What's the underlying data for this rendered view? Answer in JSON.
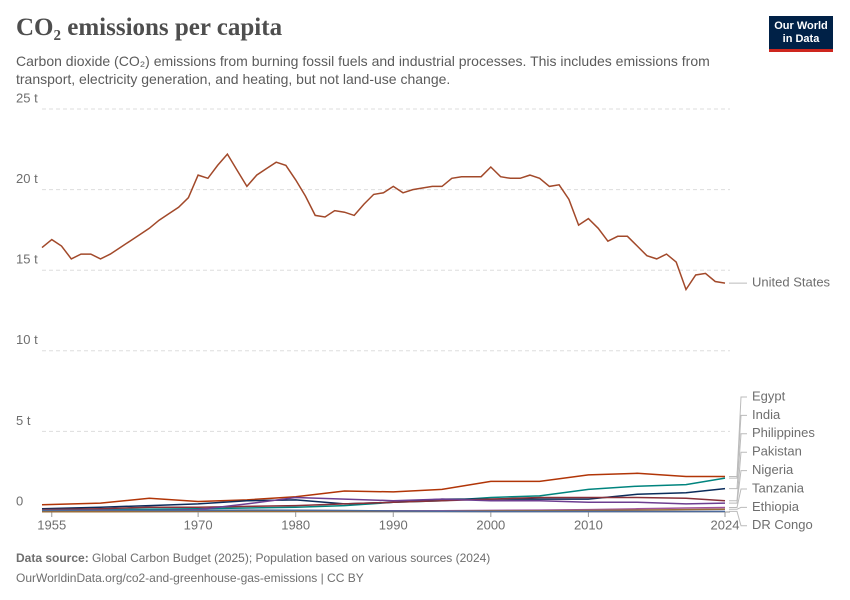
{
  "title": "CO₂ emissions per capita",
  "subtitle": "Carbon dioxide (CO₂) emissions from burning fossil fuels and industrial processes. This includes emissions from transport, electricity generation, and heating, but not land-use change.",
  "logo": [
    "Our World",
    "in Data"
  ],
  "source_label": "Data source:",
  "source": "Global Carbon Budget (2025); Population based on various sources (2024)",
  "footer": "OurWorldinData.org/co2-and-greenhouse-gas-emissions | CC BY",
  "chart_data": {
    "type": "line",
    "xlim": [
      1954,
      2024
    ],
    "xticks": [
      1955,
      1970,
      1980,
      1990,
      2000,
      2010,
      2024
    ],
    "ylim": [
      0,
      25
    ],
    "yticks": [
      0,
      {
        "value": 5,
        "label": "5 t"
      },
      {
        "value": 10,
        "label": "10 t"
      },
      {
        "value": 15,
        "label": "15 t"
      },
      {
        "value": 20,
        "label": "20 t"
      },
      {
        "value": 25,
        "label": "25 t"
      }
    ],
    "grid": true,
    "series": [
      {
        "name": "United States",
        "color": "#a2492a",
        "x": [
          1954,
          1955,
          1956,
          1957,
          1958,
          1959,
          1960,
          1961,
          1962,
          1963,
          1964,
          1965,
          1966,
          1967,
          1968,
          1969,
          1970,
          1971,
          1972,
          1973,
          1974,
          1975,
          1976,
          1977,
          1978,
          1979,
          1980,
          1981,
          1982,
          1983,
          1984,
          1985,
          1986,
          1987,
          1988,
          1989,
          1990,
          1991,
          1992,
          1993,
          1994,
          1995,
          1996,
          1997,
          1998,
          1999,
          2000,
          2001,
          2002,
          2003,
          2004,
          2005,
          2006,
          2007,
          2008,
          2009,
          2010,
          2011,
          2012,
          2013,
          2014,
          2015,
          2016,
          2017,
          2018,
          2019,
          2020,
          2021,
          2022,
          2023,
          2024
        ],
        "values": [
          16.4,
          16.9,
          16.5,
          15.7,
          16.0,
          16.0,
          15.7,
          16.0,
          16.4,
          16.8,
          17.2,
          17.6,
          18.1,
          18.5,
          18.9,
          19.5,
          20.9,
          20.7,
          21.5,
          22.2,
          21.2,
          20.2,
          20.9,
          21.3,
          21.7,
          21.5,
          20.6,
          19.6,
          18.4,
          18.3,
          18.7,
          18.6,
          18.4,
          19.1,
          19.7,
          19.8,
          20.2,
          19.8,
          20.0,
          20.1,
          20.2,
          20.2,
          20.7,
          20.8,
          20.8,
          20.8,
          21.4,
          20.8,
          20.7,
          20.7,
          20.9,
          20.7,
          20.2,
          20.3,
          19.4,
          17.8,
          18.2,
          17.6,
          16.8,
          17.1,
          17.1,
          16.5,
          15.9,
          15.7,
          16.0,
          15.5,
          13.8,
          14.7,
          14.8,
          14.3,
          14.2
        ]
      },
      {
        "name": "Egypt",
        "color": "#b13507",
        "x": [
          1954,
          1960,
          1965,
          1970,
          1975,
          1980,
          1985,
          1990,
          1995,
          2000,
          2005,
          2010,
          2015,
          2020,
          2024
        ],
        "values": [
          0.45,
          0.55,
          0.85,
          0.65,
          0.75,
          0.95,
          1.3,
          1.25,
          1.4,
          1.9,
          1.9,
          2.3,
          2.4,
          2.2,
          2.2
        ]
      },
      {
        "name": "India",
        "color": "#00847e",
        "x": [
          1954,
          1960,
          1965,
          1970,
          1975,
          1980,
          1985,
          1990,
          1995,
          2000,
          2005,
          2010,
          2015,
          2020,
          2024
        ],
        "values": [
          0.1,
          0.15,
          0.18,
          0.2,
          0.25,
          0.3,
          0.4,
          0.6,
          0.7,
          0.9,
          1.0,
          1.4,
          1.6,
          1.7,
          2.1
        ]
      },
      {
        "name": "Philippines",
        "color": "#0b2c5b",
        "x": [
          1954,
          1960,
          1965,
          1970,
          1975,
          1980,
          1985,
          1990,
          1995,
          2000,
          2005,
          2010,
          2015,
          2020,
          2024
        ],
        "values": [
          0.2,
          0.3,
          0.4,
          0.5,
          0.7,
          0.75,
          0.5,
          0.6,
          0.8,
          0.8,
          0.8,
          0.8,
          1.1,
          1.2,
          1.45
        ]
      },
      {
        "name": "Pakistan",
        "color": "#883039",
        "x": [
          1954,
          1960,
          1965,
          1970,
          1975,
          1980,
          1985,
          1990,
          1995,
          2000,
          2005,
          2010,
          2015,
          2020,
          2024
        ],
        "values": [
          0.15,
          0.2,
          0.3,
          0.3,
          0.35,
          0.4,
          0.5,
          0.6,
          0.7,
          0.8,
          0.9,
          0.9,
          0.9,
          0.85,
          0.7
        ]
      },
      {
        "name": "Nigeria",
        "color": "#6d3e91",
        "x": [
          1954,
          1960,
          1965,
          1970,
          1975,
          1980,
          1985,
          1990,
          1995,
          2000,
          2005,
          2010,
          2015,
          2020,
          2024
        ],
        "values": [
          0.02,
          0.05,
          0.1,
          0.15,
          0.5,
          0.9,
          0.8,
          0.7,
          0.8,
          0.7,
          0.7,
          0.6,
          0.6,
          0.5,
          0.55
        ]
      },
      {
        "name": "Tanzania",
        "color": "#a2559c",
        "x": [
          1954,
          1960,
          1965,
          1970,
          1975,
          1980,
          1985,
          1990,
          1995,
          2000,
          2005,
          2010,
          2015,
          2020,
          2024
        ],
        "values": [
          0.05,
          0.06,
          0.08,
          0.1,
          0.1,
          0.1,
          0.08,
          0.08,
          0.08,
          0.1,
          0.12,
          0.15,
          0.2,
          0.25,
          0.28
        ]
      },
      {
        "name": "Ethiopia",
        "color": "#996d39",
        "x": [
          1954,
          1960,
          1965,
          1970,
          1975,
          1980,
          1985,
          1990,
          1995,
          2000,
          2005,
          2010,
          2015,
          2020,
          2024
        ],
        "values": [
          0.01,
          0.02,
          0.03,
          0.05,
          0.05,
          0.05,
          0.05,
          0.05,
          0.05,
          0.07,
          0.08,
          0.09,
          0.12,
          0.15,
          0.17
        ]
      },
      {
        "name": "DR Congo",
        "color": "#4c6a9c",
        "x": [
          1954,
          1960,
          1965,
          1970,
          1975,
          1980,
          1985,
          1990,
          1995,
          2000,
          2005,
          2010,
          2015,
          2020,
          2024
        ],
        "values": [
          0.1,
          0.12,
          0.1,
          0.1,
          0.12,
          0.11,
          0.09,
          0.06,
          0.05,
          0.03,
          0.03,
          0.03,
          0.03,
          0.03,
          0.04
        ]
      }
    ]
  }
}
